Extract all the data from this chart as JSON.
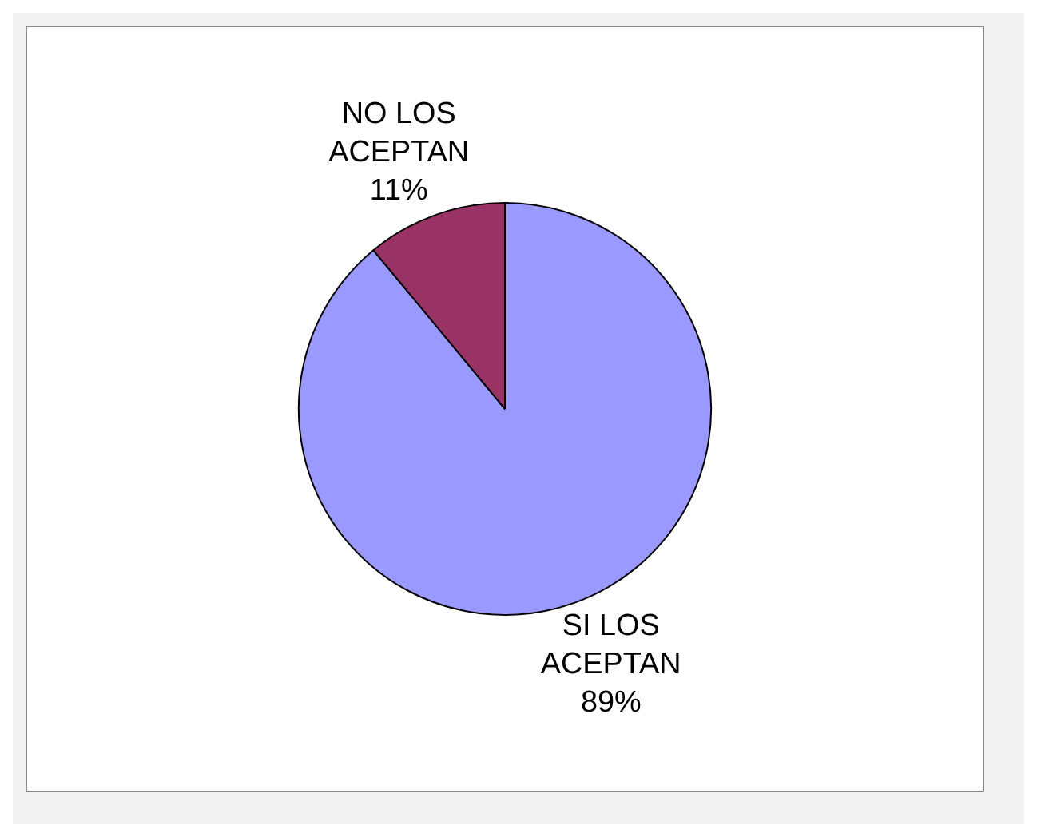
{
  "chart_data": {
    "type": "pie",
    "categories": [
      "SI LOS ACEPTAN",
      "NO LOS ACEPTAN"
    ],
    "values": [
      89,
      11
    ],
    "colors": [
      "#9999ff",
      "#993366"
    ],
    "value_labels": [
      "89%",
      "11%"
    ],
    "legend": false
  }
}
